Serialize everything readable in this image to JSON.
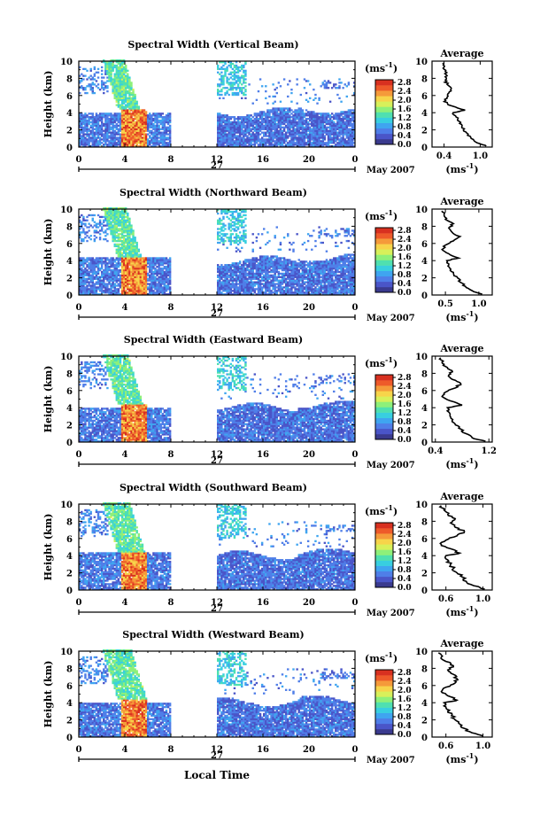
{
  "figure": {
    "bottom_xlabel": "Local Time",
    "colorbar_unit_base": "(ms",
    "colorbar_unit_exp": "-1",
    "colorbar_unit_close": ")",
    "date_label": "May 2007",
    "day_label": "27",
    "avg_title": "Average",
    "colors": {
      "colormap": [
        "#3a3a8e",
        "#4a55c8",
        "#4f7ee8",
        "#3fa5f0",
        "#38cfe0",
        "#4fe0b0",
        "#8ef07a",
        "#d8f05a",
        "#f7d44a",
        "#f59a3a",
        "#ee5a2a",
        "#d83020"
      ],
      "white_bg": "#ffffff",
      "line": "#000000"
    }
  },
  "chart_data": [
    {
      "type": "heatmap",
      "title": "Spectral Width (Vertical Beam)",
      "ylabel": "Height (km)",
      "x_ticks": [
        "0",
        "4",
        "8",
        "12",
        "16",
        "20",
        "0"
      ],
      "xlim": [
        0,
        24
      ],
      "y_ticks": [
        "0",
        "2",
        "4",
        "6",
        "8",
        "10"
      ],
      "ylim": [
        0,
        10
      ],
      "colorbar_ticks": [
        "0.0",
        "0.4",
        "0.8",
        "1.2",
        "1.6",
        "2.0",
        "2.4",
        "2.8"
      ],
      "colorbar_range": [
        0.0,
        2.8
      ],
      "data_gap_hours": [
        8,
        12
      ],
      "average_profile": {
        "xlabel": "(ms-1)",
        "x_ticks": [
          "0.4",
          "1.0"
        ],
        "xlim": [
          0.2,
          1.2
        ],
        "y_ticks": [
          "0",
          "2",
          "4",
          "6",
          "8",
          "10"
        ],
        "height_km": [
          0.1,
          0.5,
          1,
          1.5,
          2,
          2.5,
          3,
          3.5,
          4,
          4.3,
          4.8,
          5.3,
          5.8,
          6.3,
          6.8,
          7.3,
          7.8,
          8.3,
          8.8,
          9.3,
          9.8
        ],
        "width_ms": [
          1.1,
          0.95,
          0.85,
          0.8,
          0.72,
          0.7,
          0.65,
          0.6,
          0.55,
          0.75,
          0.52,
          0.4,
          0.45,
          0.48,
          0.52,
          0.45,
          0.42,
          0.45,
          0.42,
          0.4,
          0.38
        ]
      }
    },
    {
      "type": "heatmap",
      "title": "Spectral Width (Northward Beam)",
      "ylabel": "Height (km)",
      "x_ticks": [
        "0",
        "4",
        "8",
        "12",
        "16",
        "20",
        "0"
      ],
      "xlim": [
        0,
        24
      ],
      "y_ticks": [
        "0",
        "2",
        "4",
        "6",
        "8",
        "10"
      ],
      "ylim": [
        0,
        10
      ],
      "colorbar_ticks": [
        "0.0",
        "0.4",
        "0.8",
        "1.2",
        "1.6",
        "2.0",
        "2.4",
        "2.8"
      ],
      "colorbar_range": [
        0.0,
        2.8
      ],
      "data_gap_hours": [
        8,
        12
      ],
      "average_profile": {
        "xlabel": "(ms-1)",
        "x_ticks": [
          "0.5",
          "1.0"
        ],
        "xlim": [
          0.3,
          1.2
        ],
        "y_ticks": [
          "0",
          "2",
          "4",
          "6",
          "8",
          "10"
        ],
        "height_km": [
          0.1,
          0.5,
          1,
          1.5,
          2,
          2.5,
          3,
          3.5,
          4,
          4.3,
          4.8,
          5.3,
          5.8,
          6.3,
          6.8,
          7.3,
          7.8,
          8.3,
          8.8,
          9.3,
          9.8
        ],
        "width_ms": [
          1.05,
          0.9,
          0.8,
          0.72,
          0.68,
          0.62,
          0.58,
          0.55,
          0.52,
          0.7,
          0.55,
          0.45,
          0.5,
          0.62,
          0.72,
          0.6,
          0.55,
          0.62,
          0.5,
          0.48,
          0.45
        ]
      }
    },
    {
      "type": "heatmap",
      "title": "Spectral Width (Eastward Beam)",
      "ylabel": "Height (km)",
      "x_ticks": [
        "0",
        "4",
        "8",
        "12",
        "16",
        "20",
        "0"
      ],
      "xlim": [
        0,
        24
      ],
      "y_ticks": [
        "0",
        "2",
        "4",
        "6",
        "8",
        "10"
      ],
      "ylim": [
        0,
        10
      ],
      "colorbar_ticks": [
        "0.0",
        "0.4",
        "0.8",
        "1.2",
        "1.6",
        "2.0",
        "2.4",
        "2.8"
      ],
      "colorbar_range": [
        0.0,
        2.8
      ],
      "data_gap_hours": [
        8,
        12
      ],
      "average_profile": {
        "xlabel": "(ms-1)",
        "x_ticks": [
          "0.4",
          "1.2"
        ],
        "xlim": [
          0.35,
          1.25
        ],
        "y_ticks": [
          "0",
          "2",
          "4",
          "6",
          "8",
          "10"
        ],
        "height_km": [
          0.1,
          0.5,
          1,
          1.5,
          2,
          2.5,
          3,
          3.5,
          4,
          4.3,
          4.8,
          5.3,
          5.8,
          6.3,
          6.8,
          7.3,
          7.8,
          8.3,
          8.8,
          9.3,
          9.8
        ],
        "width_ms": [
          1.15,
          0.95,
          0.85,
          0.78,
          0.7,
          0.65,
          0.62,
          0.6,
          0.58,
          0.8,
          0.62,
          0.5,
          0.55,
          0.7,
          0.78,
          0.65,
          0.6,
          0.65,
          0.55,
          0.5,
          0.48
        ]
      }
    },
    {
      "type": "heatmap",
      "title": "Spectral Width (Southward Beam)",
      "ylabel": "Height (km)",
      "x_ticks": [
        "0",
        "4",
        "8",
        "12",
        "16",
        "20",
        "0"
      ],
      "xlim": [
        0,
        24
      ],
      "y_ticks": [
        "0",
        "2",
        "4",
        "6",
        "8",
        "10"
      ],
      "ylim": [
        0,
        10
      ],
      "colorbar_ticks": [
        "0.0",
        "0.4",
        "0.8",
        "1.2",
        "1.6",
        "2.0",
        "2.4",
        "2.8"
      ],
      "colorbar_range": [
        0.0,
        2.8
      ],
      "data_gap_hours": [
        8,
        12
      ],
      "average_profile": {
        "xlabel": "(ms-1)",
        "x_ticks": [
          "0.6",
          "1.0"
        ],
        "xlim": [
          0.45,
          1.1
        ],
        "y_ticks": [
          "0",
          "2",
          "4",
          "6",
          "8",
          "10"
        ],
        "height_km": [
          0.1,
          0.5,
          1,
          1.5,
          2,
          2.5,
          3,
          3.5,
          4,
          4.3,
          4.8,
          5.3,
          5.8,
          6.3,
          6.8,
          7.3,
          7.8,
          8.3,
          8.8,
          9.3,
          9.8
        ],
        "width_ms": [
          1.02,
          0.9,
          0.82,
          0.78,
          0.72,
          0.68,
          0.65,
          0.62,
          0.6,
          0.75,
          0.65,
          0.55,
          0.6,
          0.72,
          0.8,
          0.7,
          0.65,
          0.7,
          0.62,
          0.58,
          0.55
        ]
      }
    },
    {
      "type": "heatmap",
      "title": "Spectral Width (Westward Beam)",
      "ylabel": "Height (km)",
      "x_ticks": [
        "0",
        "4",
        "8",
        "12",
        "16",
        "20",
        "0"
      ],
      "xlim": [
        0,
        24
      ],
      "y_ticks": [
        "0",
        "2",
        "4",
        "6",
        "8",
        "10"
      ],
      "ylim": [
        0,
        10
      ],
      "colorbar_ticks": [
        "0.0",
        "0.4",
        "0.8",
        "1.2",
        "1.6",
        "2.0",
        "2.4",
        "2.8"
      ],
      "colorbar_range": [
        0.0,
        2.8
      ],
      "data_gap_hours": [
        8,
        12
      ],
      "average_profile": {
        "xlabel": "(ms-1)",
        "x_ticks": [
          "0.6",
          "1.0"
        ],
        "xlim": [
          0.45,
          1.1
        ],
        "y_ticks": [
          "0",
          "2",
          "4",
          "6",
          "8",
          "10"
        ],
        "height_km": [
          0.1,
          0.5,
          1,
          1.5,
          2,
          2.5,
          3,
          3.5,
          4,
          4.3,
          4.8,
          5.3,
          5.8,
          6.3,
          6.8,
          7.3,
          7.8,
          8.3,
          8.8,
          9.3,
          9.8
        ],
        "width_ms": [
          1.0,
          0.88,
          0.8,
          0.75,
          0.7,
          0.66,
          0.62,
          0.6,
          0.58,
          0.72,
          0.62,
          0.55,
          0.6,
          0.7,
          0.72,
          0.68,
          0.62,
          0.68,
          0.6,
          0.55,
          0.52
        ]
      }
    }
  ]
}
